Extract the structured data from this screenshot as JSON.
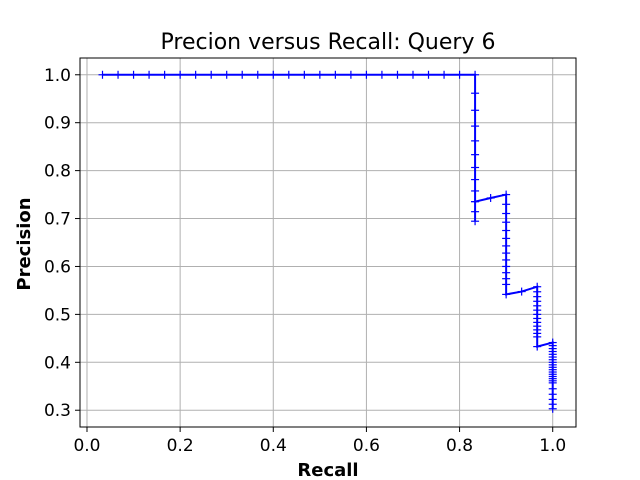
{
  "chart_data": {
    "type": "line",
    "title": "Precion versus Recall: Query 6",
    "xlabel": "Recall",
    "ylabel": "Precision",
    "xlim": [
      -0.015,
      1.05
    ],
    "ylim": [
      0.265,
      1.035
    ],
    "xticks": [
      0.0,
      0.2,
      0.4,
      0.6,
      0.8,
      1.0
    ],
    "xtick_labels": [
      "0.0",
      "0.2",
      "0.4",
      "0.6",
      "0.8",
      "1.0"
    ],
    "yticks": [
      0.3,
      0.4,
      0.5,
      0.6,
      0.7,
      0.8,
      0.9,
      1.0
    ],
    "ytick_labels": [
      "0.3",
      "0.4",
      "0.5",
      "0.6",
      "0.7",
      "0.8",
      "0.9",
      "1.0"
    ],
    "grid": true,
    "line_color": "#0000ff",
    "marker": "+",
    "series": [
      {
        "x": [
          0.0333,
          0.0667,
          0.1,
          0.1333,
          0.1667,
          0.2,
          0.2333,
          0.2667,
          0.3,
          0.3333,
          0.3667,
          0.4,
          0.4333,
          0.4667,
          0.5,
          0.5333,
          0.5667,
          0.6,
          0.6333,
          0.6667,
          0.7,
          0.7333,
          0.7667,
          0.8,
          0.8333,
          0.8333,
          0.8333,
          0.8333,
          0.8333,
          0.8333,
          0.8333,
          0.8333,
          0.8333,
          0.8333,
          0.8333,
          0.8333,
          0.8333,
          0.8667,
          0.9,
          0.9,
          0.9,
          0.9,
          0.9,
          0.9,
          0.9,
          0.9,
          0.9,
          0.9,
          0.9,
          0.9,
          0.9,
          0.9,
          0.9333,
          0.9667,
          0.9667,
          0.9667,
          0.9667,
          0.9667,
          0.9667,
          0.9667,
          0.9667,
          0.9667,
          0.9667,
          0.9667,
          0.9667,
          0.9667,
          0.9667,
          1.0,
          1.0,
          1.0,
          1.0,
          1.0,
          1.0,
          1.0,
          1.0,
          1.0,
          1.0,
          1.0,
          1.0,
          1.0,
          1.0,
          1.0,
          1.0,
          1.0,
          1.0,
          1.0,
          1.0,
          1.0,
          1.0
        ],
        "y": [
          1.0,
          1.0,
          1.0,
          1.0,
          1.0,
          1.0,
          1.0,
          1.0,
          1.0,
          1.0,
          1.0,
          1.0,
          1.0,
          1.0,
          1.0,
          1.0,
          1.0,
          1.0,
          1.0,
          1.0,
          1.0,
          1.0,
          1.0,
          1.0,
          1.0,
          0.9615,
          0.9259,
          0.8929,
          0.8621,
          0.8333,
          0.8065,
          0.7813,
          0.7576,
          0.7353,
          0.7143,
          0.6944,
          0.7353,
          0.7429,
          0.75,
          0.7297,
          0.7105,
          0.6923,
          0.675,
          0.6585,
          0.6429,
          0.6279,
          0.6136,
          0.6,
          0.587,
          0.5745,
          0.5625,
          0.5417,
          0.5476,
          0.5577,
          0.5472,
          0.537,
          0.5273,
          0.5179,
          0.5088,
          0.5,
          0.4915,
          0.4833,
          0.4754,
          0.4677,
          0.4603,
          0.4531,
          0.4328,
          0.4412,
          0.4348,
          0.4286,
          0.4225,
          0.4167,
          0.411,
          0.4054,
          0.4,
          0.3947,
          0.3896,
          0.3846,
          0.3797,
          0.375,
          0.3704,
          0.3659,
          0.3614,
          0.3571,
          0.3448,
          0.3333,
          0.3226,
          0.3125,
          0.303
        ]
      }
    ]
  }
}
